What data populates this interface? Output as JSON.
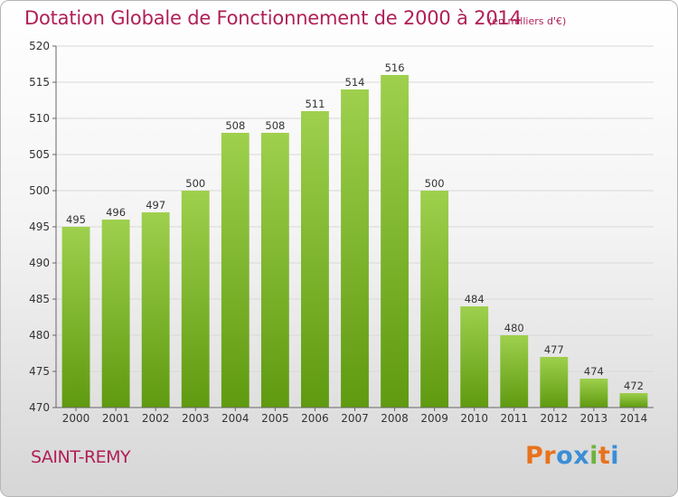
{
  "header": {
    "title": "Dotation Globale de Fonctionnement de 2000 à 2014",
    "unit_note": "(en milliers d'€)"
  },
  "footer": {
    "commune": "SAINT-REMY",
    "logo": [
      "P",
      "r",
      "o",
      "x",
      "i",
      "t",
      "i"
    ],
    "logo_colors": [
      "#e8721c",
      "#e8721c",
      "#3a8ed6",
      "#3a8ed6",
      "#6db33f",
      "#e8721c",
      "#3a8ed6"
    ]
  },
  "colors": {
    "title": "#b01f56",
    "bar_top": "#9ed04d",
    "bar_bottom": "#5f9a10"
  },
  "chart_data": {
    "type": "bar",
    "title": "Dotation Globale de Fonctionnement de 2000 à 2014",
    "subtitle": "(en milliers d'€)",
    "categories": [
      "2000",
      "2001",
      "2002",
      "2003",
      "2004",
      "2005",
      "2006",
      "2007",
      "2008",
      "2009",
      "2010",
      "2011",
      "2012",
      "2013",
      "2014"
    ],
    "values": [
      495,
      496,
      497,
      500,
      508,
      508,
      511,
      514,
      516,
      500,
      484,
      480,
      477,
      474,
      472
    ],
    "ylim": [
      470,
      520
    ],
    "yticks": [
      470,
      475,
      480,
      485,
      490,
      495,
      500,
      505,
      510,
      515,
      520
    ],
    "xlabel": "",
    "ylabel": "",
    "grid": true,
    "legend": "none"
  }
}
